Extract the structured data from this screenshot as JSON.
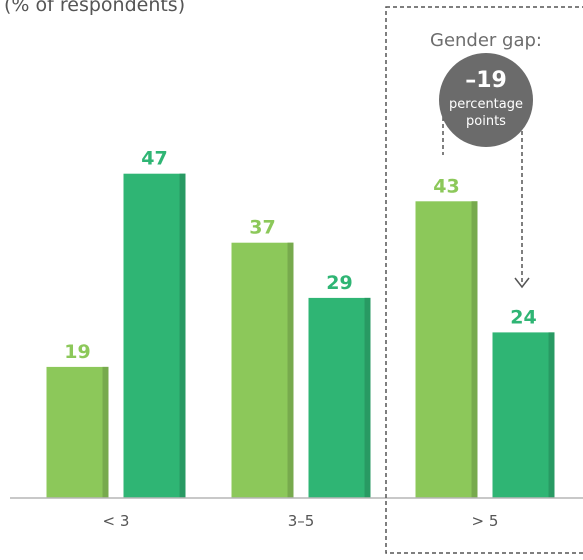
{
  "chart_data": {
    "type": "bar",
    "unit_label": "(% of respondents)",
    "categories": [
      "< 3",
      "3–5",
      "> 5"
    ],
    "series": [
      {
        "values": [
          19,
          37,
          43
        ],
        "color": "#8cc85a"
      },
      {
        "values": [
          47,
          29,
          24
        ],
        "color": "#2fb574"
      }
    ],
    "ylim": [
      0,
      50
    ],
    "grid": false,
    "legend": "none",
    "highlight": {
      "category": "> 5",
      "label": "Gender gap:",
      "value": "–19",
      "unit_line1": "percentage",
      "unit_line2": "points"
    }
  }
}
